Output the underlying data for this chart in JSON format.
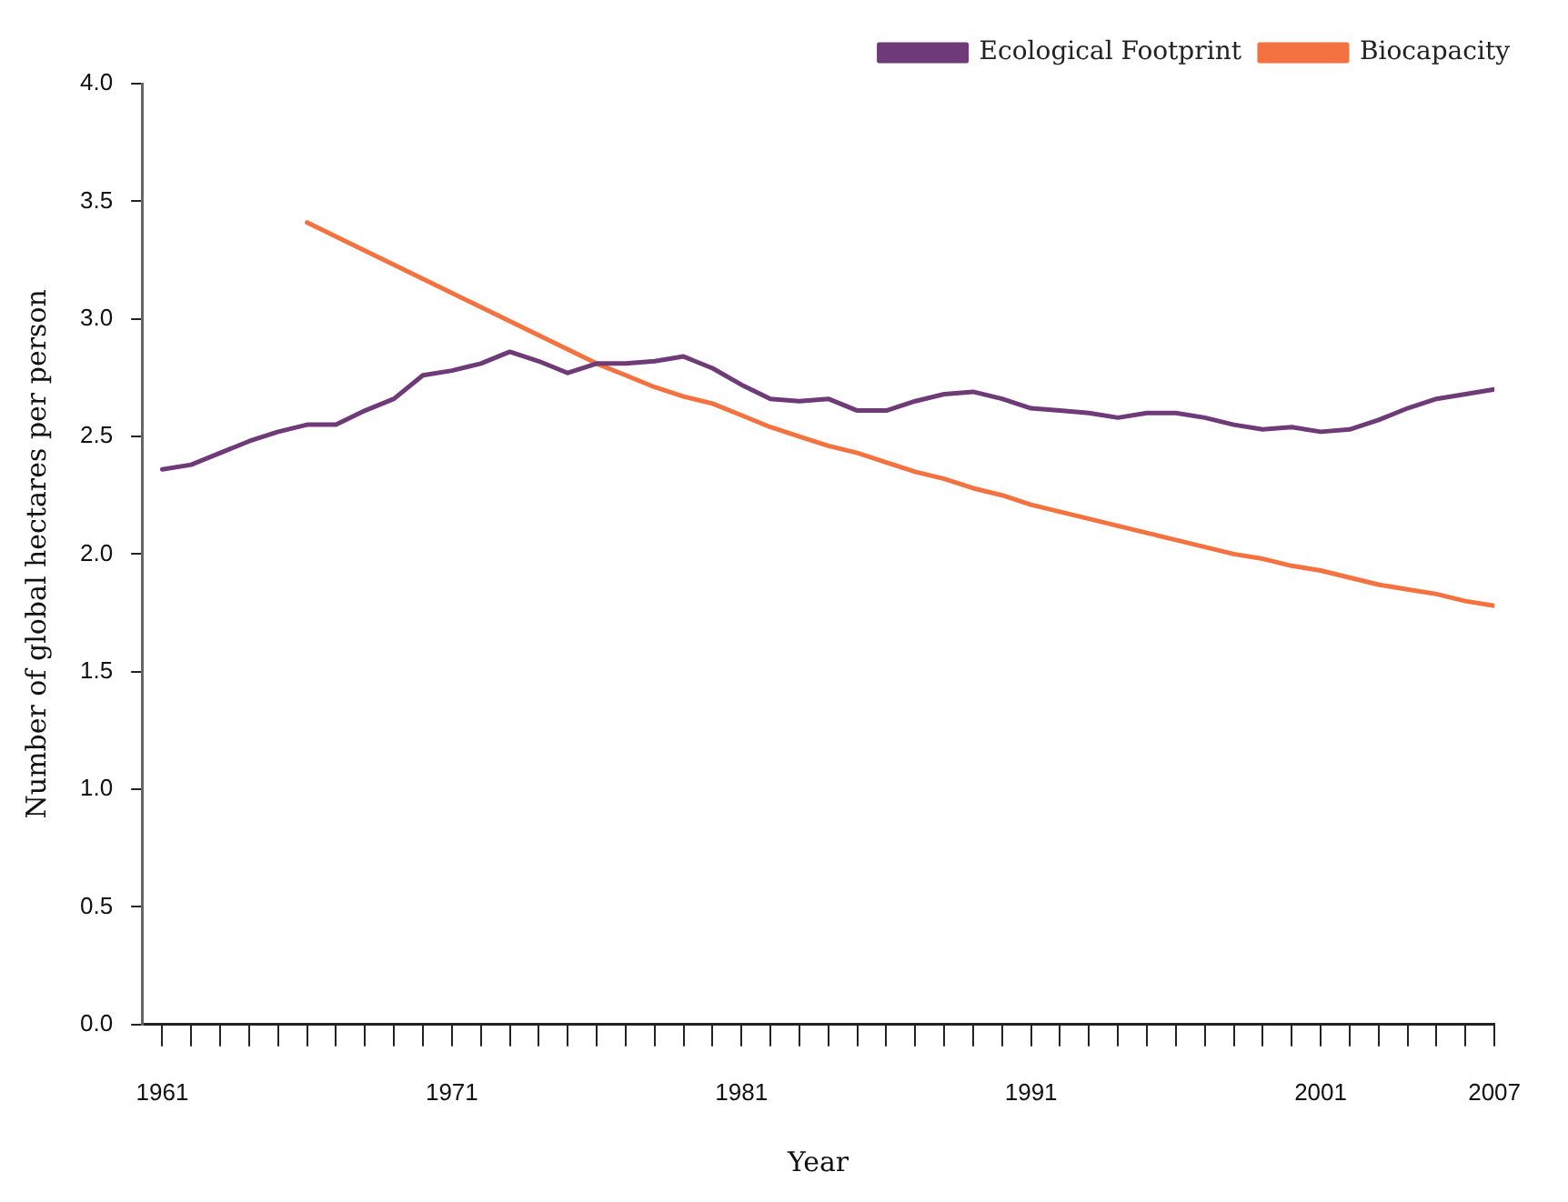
{
  "chart_data": {
    "type": "line",
    "xlabel": "Year",
    "ylabel": "Number of global hectares per person",
    "x": [
      1961,
      1962,
      1963,
      1964,
      1965,
      1966,
      1967,
      1968,
      1969,
      1970,
      1971,
      1972,
      1973,
      1974,
      1975,
      1976,
      1977,
      1978,
      1979,
      1980,
      1981,
      1982,
      1983,
      1984,
      1985,
      1986,
      1987,
      1988,
      1989,
      1990,
      1991,
      1992,
      1993,
      1994,
      1995,
      1996,
      1997,
      1998,
      1999,
      2000,
      2001,
      2002,
      2003,
      2004,
      2005,
      2006,
      2007
    ],
    "series": [
      {
        "name": "Ecological Footprint",
        "color": "#6e3a78",
        "values": [
          2.36,
          2.38,
          2.43,
          2.48,
          2.52,
          2.55,
          2.55,
          2.61,
          2.66,
          2.76,
          2.78,
          2.81,
          2.86,
          2.82,
          2.77,
          2.81,
          2.81,
          2.82,
          2.84,
          2.79,
          2.72,
          2.66,
          2.65,
          2.66,
          2.61,
          2.61,
          2.65,
          2.68,
          2.69,
          2.66,
          2.62,
          2.61,
          2.6,
          2.58,
          2.6,
          2.6,
          2.58,
          2.55,
          2.53,
          2.54,
          2.52,
          2.53,
          2.57,
          2.62,
          2.66,
          2.68,
          2.7
        ]
      },
      {
        "name": "Biocapacity",
        "color": "#f37240",
        "values": [
          null,
          null,
          null,
          null,
          null,
          3.41,
          3.35,
          3.29,
          3.23,
          3.17,
          3.11,
          3.05,
          2.99,
          2.93,
          2.87,
          2.81,
          2.76,
          2.71,
          2.67,
          2.64,
          2.59,
          2.54,
          2.5,
          2.46,
          2.43,
          2.39,
          2.35,
          2.32,
          2.28,
          2.25,
          2.21,
          2.18,
          2.15,
          2.12,
          2.09,
          2.06,
          2.03,
          2.0,
          1.98,
          1.95,
          1.93,
          1.9,
          1.87,
          1.85,
          1.83,
          1.8,
          1.78
        ]
      }
    ],
    "xlim": [
      1960.3,
      2007
    ],
    "xticks": [
      1961,
      {
        "value": 1962,
        "label": null
      },
      {
        "value": 1963,
        "label": null
      },
      {
        "value": 1964,
        "label": null
      },
      {
        "value": 1965,
        "label": null
      },
      {
        "value": 1966,
        "label": null
      },
      {
        "value": 1967,
        "label": null
      },
      {
        "value": 1968,
        "label": null
      },
      {
        "value": 1969,
        "label": null
      },
      {
        "value": 1970,
        "label": null
      },
      1971,
      {
        "value": 1972,
        "label": null
      },
      {
        "value": 1973,
        "label": null
      },
      {
        "value": 1974,
        "label": null
      },
      {
        "value": 1975,
        "label": null
      },
      {
        "value": 1976,
        "label": null
      },
      {
        "value": 1977,
        "label": null
      },
      {
        "value": 1978,
        "label": null
      },
      {
        "value": 1979,
        "label": null
      },
      {
        "value": 1980,
        "label": null
      },
      1981,
      {
        "value": 1982,
        "label": null
      },
      {
        "value": 1983,
        "label": null
      },
      {
        "value": 1984,
        "label": null
      },
      {
        "value": 1985,
        "label": null
      },
      {
        "value": 1986,
        "label": null
      },
      {
        "value": 1987,
        "label": null
      },
      {
        "value": 1988,
        "label": null
      },
      {
        "value": 1989,
        "label": null
      },
      {
        "value": 1990,
        "label": null
      },
      1991,
      {
        "value": 1992,
        "label": null
      },
      {
        "value": 1993,
        "label": null
      },
      {
        "value": 1994,
        "label": null
      },
      {
        "value": 1995,
        "label": null
      },
      {
        "value": 1996,
        "label": null
      },
      {
        "value": 1997,
        "label": null
      },
      {
        "value": 1998,
        "label": null
      },
      {
        "value": 1999,
        "label": null
      },
      {
        "value": 2000,
        "label": null
      },
      2001,
      {
        "value": 2002,
        "label": null
      },
      {
        "value": 2003,
        "label": null
      },
      {
        "value": 2004,
        "label": null
      },
      {
        "value": 2005,
        "label": null
      },
      {
        "value": 2006,
        "label": null
      },
      2007
    ],
    "ylim": [
      0,
      4
    ],
    "yticks": [
      {
        "value": 0,
        "label": "0.0"
      },
      {
        "value": 0.5,
        "label": "0.5"
      },
      {
        "value": 1,
        "label": "1.0"
      },
      {
        "value": 1.5,
        "label": "1.5"
      },
      {
        "value": 2,
        "label": "2.0"
      },
      {
        "value": 2.5,
        "label": "2.5"
      },
      {
        "value": 3,
        "label": "3.0"
      },
      {
        "value": 3.5,
        "label": "3.5"
      },
      {
        "value": 4,
        "label": "4.0"
      }
    ],
    "grid": false,
    "legend": "top right",
    "marker": "none",
    "line_style": "solid"
  }
}
